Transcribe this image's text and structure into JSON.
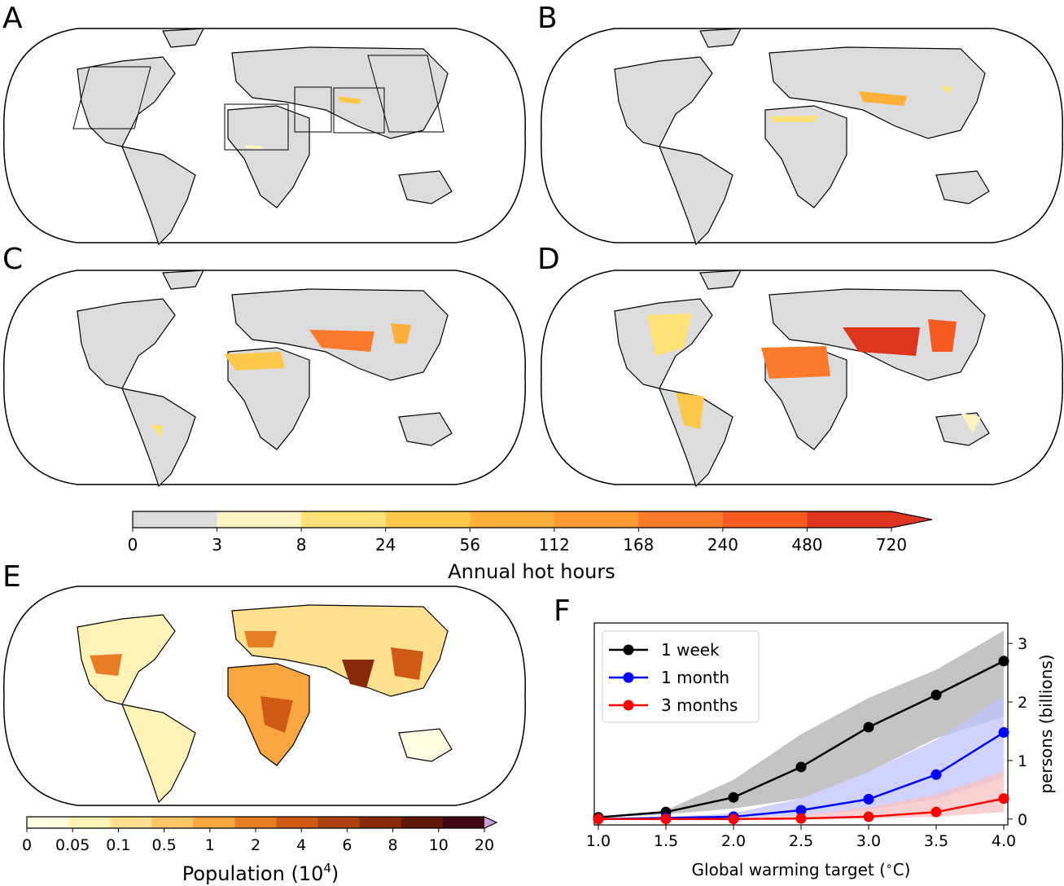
{
  "panels": {
    "a": "A",
    "b": "B",
    "c": "C",
    "d": "D",
    "e": "E",
    "f": "F"
  },
  "colorbar_hot": {
    "ticks": [
      "0",
      "3",
      "8",
      "24",
      "56",
      "112",
      "168",
      "240",
      "480",
      "720"
    ],
    "label": "Annual hot hours",
    "colors": [
      "#dcdcdc",
      "#fff3c4",
      "#ffe277",
      "#fec84a",
      "#fdb13a",
      "#fd9a32",
      "#fb7a2c",
      "#f45a22",
      "#dd3520"
    ]
  },
  "colorbar_pop": {
    "ticks": [
      "0",
      "0.05",
      "0.1",
      "0.5",
      "1",
      "2",
      "4",
      "6",
      "8",
      "10",
      "20"
    ],
    "label_main": "Population (10",
    "label_sup": "4",
    "label_end": ")",
    "colors": [
      "#fffde2",
      "#fff3b8",
      "#fee08f",
      "#fdc666",
      "#f7a640",
      "#e97d23",
      "#cf5a15",
      "#ac3f0e",
      "#862a09",
      "#5e1607",
      "#3e0612"
    ]
  },
  "chart_data": {
    "type": "line",
    "xlabel": "Global warming target ($^\\circ$C)",
    "ylabel": "persons (billions)",
    "x": [
      1.0,
      1.5,
      2.0,
      2.5,
      3.0,
      3.5,
      4.0
    ],
    "xticks": [
      "1.0",
      "1.5",
      "2.0",
      "2.5",
      "3.0",
      "3.5",
      "4.0"
    ],
    "yticks": [
      "0",
      "1",
      "2",
      "3"
    ],
    "xlim": [
      0.97,
      4.03
    ],
    "ylim": [
      -0.1,
      3.35
    ],
    "legend_position": "top-left",
    "series": [
      {
        "name": "1 week",
        "color": "#000000",
        "band": "#b0b0b0",
        "values": [
          0.03,
          0.12,
          0.37,
          0.89,
          1.57,
          2.12,
          2.7
        ],
        "lower": [
          0.02,
          0.08,
          0.18,
          0.35,
          0.8,
          1.38,
          1.75
        ],
        "upper": [
          0.04,
          0.15,
          0.67,
          1.45,
          2.07,
          2.55,
          3.22
        ]
      },
      {
        "name": "1 month",
        "color": "#0000ff",
        "band": "#c0c4ff",
        "values": [
          0.0,
          0.02,
          0.04,
          0.15,
          0.34,
          0.76,
          1.48
        ],
        "lower": [
          0.0,
          0.0,
          0.02,
          0.06,
          0.16,
          0.34,
          0.72
        ],
        "upper": [
          0.0,
          0.03,
          0.1,
          0.35,
          0.8,
          1.35,
          2.1
        ]
      },
      {
        "name": "3 months",
        "color": "#ff0000",
        "band": "#f7c0c0",
        "values": [
          0.0,
          0.0,
          0.0,
          0.01,
          0.04,
          0.12,
          0.35
        ],
        "lower": [
          0.0,
          0.0,
          0.0,
          0.0,
          0.01,
          0.04,
          0.12
        ],
        "upper": [
          0.0,
          0.0,
          0.01,
          0.07,
          0.2,
          0.42,
          0.82
        ]
      }
    ]
  }
}
